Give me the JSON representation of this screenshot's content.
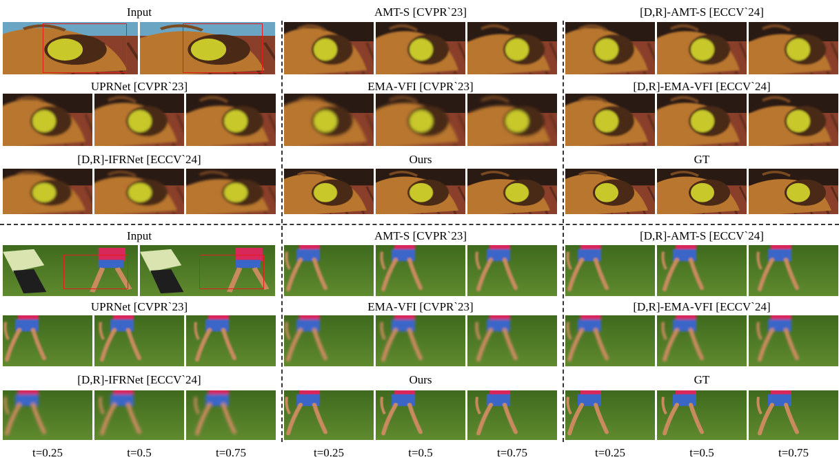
{
  "figure": {
    "sections": [
      {
        "name": "dog",
        "rows": [
          [
            "Input",
            "AMT-S [CVPR`23]",
            "[D,R]-AMT-S [ECCV`24]"
          ],
          [
            "UPRNet [CVPR`23]",
            "EMA-VFI [CVPR`23]",
            "[D,R]-EMA-VFI [ECCV`24]"
          ],
          [
            "[D,R]-IFRNet [ECCV`24]",
            "Ours",
            "GT"
          ]
        ]
      },
      {
        "name": "runner",
        "rows": [
          [
            "Input",
            "AMT-S [CVPR`23]",
            "[D,R]-AMT-S [ECCV`24]"
          ],
          [
            "UPRNet [CVPR`23]",
            "EMA-VFI [CVPR`23]",
            "[D,R]-EMA-VFI [ECCV`24]"
          ],
          [
            "[D,R]-IFRNet [ECCV`24]",
            "Ours",
            "GT"
          ]
        ]
      }
    ],
    "time_labels": [
      "t=0.25",
      "t=0.5",
      "t=0.75"
    ],
    "colors": {
      "dog_fur": "#b8762e",
      "dog_dark": "#4a2a16",
      "ball": "#c8c82a",
      "brick": "#8a3f2a",
      "pool": "#6aa6c4",
      "grass": "#3f6a1e",
      "grass_light": "#5f8a2e",
      "shirt": "#d8285a",
      "shorts": "#3a66c8",
      "skin": "#c98a5e",
      "highlight_box": "#e21b1b"
    }
  }
}
